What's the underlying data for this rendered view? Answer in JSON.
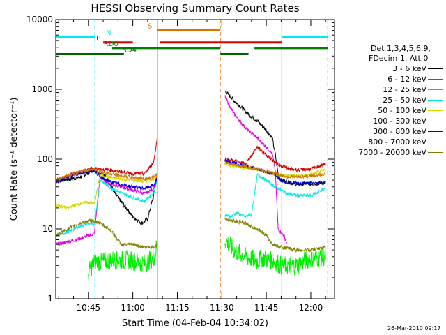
{
  "chart_data": {
    "type": "line",
    "title": "HESSI Observing Summary Count Rates",
    "xlabel": "Start Time (04-Feb-04 10:34:02)",
    "ylabel": "Count Rate (s⁻¹ detector⁻¹)",
    "yscale": "log",
    "ylim": [
      1,
      10000
    ],
    "xlim_minutes_after_1030": [
      4,
      98
    ],
    "x_ticks": [
      {
        "label": "10:45",
        "min": 15
      },
      {
        "label": "11:00",
        "min": 30
      },
      {
        "label": "11:15",
        "min": 45
      },
      {
        "label": "11:30",
        "min": 60
      },
      {
        "label": "11:45",
        "min": 75
      },
      {
        "label": "12:00",
        "min": 90
      }
    ],
    "y_ticks": [
      {
        "label": "1",
        "value": 1
      },
      {
        "label": "10",
        "value": 10
      },
      {
        "label": "100",
        "value": 100
      },
      {
        "label": "1000",
        "value": 1000
      },
      {
        "label": "10000",
        "value": 10000
      }
    ],
    "legend_title": [
      "Det 1,3,4,5,6,9,",
      "FDecim 1, Att 0"
    ],
    "legend_placement": "right",
    "segments": [
      [
        4,
        38.3
      ],
      [
        59.5,
        95.7
      ]
    ],
    "series": [
      {
        "name": "3 - 6 keV",
        "color": "#000000",
        "seg1": [
          [
            4,
            48
          ],
          [
            12,
            55
          ],
          [
            17,
            70
          ],
          [
            21,
            58
          ],
          [
            24,
            32
          ],
          [
            27,
            22
          ],
          [
            30,
            15
          ],
          [
            33,
            12
          ],
          [
            35,
            14
          ],
          [
            37,
            30
          ],
          [
            38.3,
            65
          ]
        ],
        "seg2": [
          [
            61,
            950
          ],
          [
            64,
            700
          ],
          [
            68,
            480
          ],
          [
            72,
            350
          ],
          [
            75,
            260
          ],
          [
            77,
            200
          ],
          [
            78,
            120
          ],
          [
            79,
            60
          ],
          [
            80,
            50
          ],
          [
            85,
            44
          ],
          [
            90,
            44
          ],
          [
            95,
            46
          ]
        ]
      },
      {
        "name": "6 - 12 keV",
        "color": "#e000e0",
        "seg1": [
          [
            4,
            6
          ],
          [
            11,
            7
          ],
          [
            15,
            8
          ],
          [
            17,
            8.5
          ],
          [
            19,
            55
          ],
          [
            22,
            45
          ],
          [
            26,
            40
          ],
          [
            30,
            36
          ],
          [
            34,
            32
          ],
          [
            37,
            38
          ],
          [
            38.3,
            60
          ]
        ],
        "seg2": [
          [
            61,
            800
          ],
          [
            64,
            450
          ],
          [
            68,
            280
          ],
          [
            72,
            200
          ],
          [
            75,
            150
          ],
          [
            77,
            120
          ],
          [
            78,
            70
          ],
          [
            79,
            10
          ],
          [
            81,
            8
          ],
          [
            82,
            6
          ]
        ]
      },
      {
        "name": "12 - 25 keV",
        "color": "#00ee00",
        "seg1": [
          [
            15,
            2.3
          ],
          [
            17,
            3.5
          ],
          [
            19,
            3.3
          ],
          [
            22,
            3.6
          ],
          [
            26,
            3.6
          ],
          [
            30,
            3.5
          ],
          [
            34,
            3.2
          ],
          [
            37,
            3.8
          ],
          [
            38.3,
            6
          ]
        ],
        "seg2": [
          [
            61,
            7
          ],
          [
            64,
            5
          ],
          [
            68,
            4
          ],
          [
            72,
            3.5
          ],
          [
            74,
            3.8
          ],
          [
            76,
            3.6
          ],
          [
            78,
            3.4
          ],
          [
            80,
            3
          ],
          [
            85,
            3
          ],
          [
            90,
            3.8
          ],
          [
            95,
            4
          ]
        ]
      },
      {
        "name": "25 - 50 keV",
        "color": "#00e8e8",
        "seg1": [
          [
            4,
            8
          ],
          [
            8,
            9
          ],
          [
            12,
            11
          ],
          [
            15,
            12
          ],
          [
            17,
            11.5
          ],
          [
            19,
            50
          ],
          [
            22,
            40
          ],
          [
            26,
            33
          ],
          [
            30,
            28
          ],
          [
            34,
            25
          ],
          [
            37,
            33
          ],
          [
            38.3,
            50
          ]
        ],
        "seg2": [
          [
            61,
            16
          ],
          [
            63,
            15
          ],
          [
            65,
            17
          ],
          [
            68,
            15
          ],
          [
            70,
            16
          ],
          [
            72,
            60
          ],
          [
            75,
            50
          ],
          [
            78,
            40
          ],
          [
            82,
            32
          ],
          [
            85,
            30
          ],
          [
            90,
            30
          ],
          [
            95,
            38
          ]
        ]
      },
      {
        "name": "50 - 100 keV",
        "color": "#d6d600",
        "seg1": [
          [
            4,
            22
          ],
          [
            8,
            20
          ],
          [
            12,
            23
          ],
          [
            15,
            24
          ],
          [
            17,
            23
          ],
          [
            19,
            60
          ],
          [
            22,
            55
          ],
          [
            26,
            52
          ],
          [
            30,
            50
          ],
          [
            34,
            48
          ],
          [
            37,
            52
          ],
          [
            38.3,
            60
          ]
        ],
        "seg2": [
          [
            61,
            85
          ],
          [
            64,
            80
          ],
          [
            68,
            75
          ],
          [
            72,
            70
          ],
          [
            76,
            64
          ],
          [
            79,
            60
          ],
          [
            82,
            58
          ],
          [
            86,
            57
          ],
          [
            90,
            60
          ],
          [
            95,
            70
          ]
        ]
      },
      {
        "name": "100 - 300 keV",
        "color": "#cc0000",
        "seg1": [
          [
            4,
            50
          ],
          [
            8,
            58
          ],
          [
            12,
            66
          ],
          [
            15,
            72
          ],
          [
            17,
            74
          ],
          [
            19,
            72
          ],
          [
            22,
            70
          ],
          [
            26,
            66
          ],
          [
            30,
            62
          ],
          [
            34,
            62
          ],
          [
            37,
            90
          ],
          [
            38.3,
            210
          ]
        ],
        "seg2": [
          [
            61,
            100
          ],
          [
            64,
            95
          ],
          [
            68,
            85
          ],
          [
            72,
            150
          ],
          [
            75,
            115
          ],
          [
            78,
            90
          ],
          [
            80,
            80
          ],
          [
            83,
            72
          ],
          [
            86,
            70
          ],
          [
            90,
            72
          ],
          [
            95,
            85
          ]
        ]
      },
      {
        "name": "300 - 800 keV",
        "color": "#0000dd",
        "seg1": [
          [
            4,
            46
          ],
          [
            8,
            55
          ],
          [
            12,
            62
          ],
          [
            15,
            68
          ],
          [
            17,
            70
          ],
          [
            19,
            55
          ],
          [
            22,
            48
          ],
          [
            26,
            43
          ],
          [
            30,
            40
          ],
          [
            34,
            38
          ],
          [
            37,
            42
          ],
          [
            38.3,
            55
          ]
        ],
        "seg2": [
          [
            61,
            95
          ],
          [
            64,
            88
          ],
          [
            68,
            80
          ],
          [
            72,
            72
          ],
          [
            75,
            65
          ],
          [
            78,
            60
          ],
          [
            80,
            50
          ],
          [
            83,
            46
          ],
          [
            86,
            45
          ],
          [
            90,
            45
          ],
          [
            95,
            46
          ]
        ]
      },
      {
        "name": "800 - 7000 keV",
        "color": "#cc7700",
        "seg1": [
          [
            4,
            50
          ],
          [
            8,
            57
          ],
          [
            12,
            65
          ],
          [
            15,
            70
          ],
          [
            17,
            71
          ],
          [
            19,
            66
          ],
          [
            22,
            62
          ],
          [
            26,
            58
          ],
          [
            30,
            55
          ],
          [
            34,
            52
          ],
          [
            37,
            55
          ],
          [
            38.3,
            60
          ]
        ],
        "seg2": [
          [
            61,
            90
          ],
          [
            64,
            84
          ],
          [
            68,
            78
          ],
          [
            72,
            72
          ],
          [
            76,
            66
          ],
          [
            79,
            60
          ],
          [
            82,
            56
          ],
          [
            86,
            55
          ],
          [
            90,
            57
          ],
          [
            95,
            62
          ]
        ]
      },
      {
        "name": "7000 - 20000 keV",
        "color": "#808000",
        "seg1": [
          [
            4,
            8
          ],
          [
            8,
            10
          ],
          [
            12,
            12
          ],
          [
            15,
            13
          ],
          [
            17,
            13
          ],
          [
            19,
            12
          ],
          [
            22,
            10
          ],
          [
            24,
            8
          ],
          [
            26,
            6
          ],
          [
            30,
            6
          ],
          [
            34,
            5.5
          ],
          [
            37,
            5.5
          ],
          [
            38.3,
            6
          ]
        ],
        "seg2": [
          [
            61,
            14
          ],
          [
            64,
            13
          ],
          [
            68,
            12
          ],
          [
            72,
            10
          ],
          [
            75,
            8
          ],
          [
            77,
            6
          ],
          [
            80,
            5.5
          ],
          [
            85,
            5
          ],
          [
            90,
            5
          ],
          [
            95,
            5.5
          ]
        ]
      }
    ],
    "vertical_markers": [
      {
        "min": 4,
        "color": "#00e8e8",
        "style": "solid"
      },
      {
        "min": 17.2,
        "color": "#00e8e8",
        "style": "dashed"
      },
      {
        "min": 38.3,
        "color": "#e07000",
        "style": "solid"
      },
      {
        "min": 59.5,
        "color": "#e07000",
        "style": "dashed"
      },
      {
        "min": 80.2,
        "color": "#00e8e8",
        "style": "solid"
      },
      {
        "min": 95.7,
        "color": "#00e8e8",
        "style": "dashed"
      }
    ],
    "flag_bars": [
      {
        "label": "N",
        "color": "#00e8e8",
        "level": 5600,
        "spans": [
          [
            4,
            17.2
          ],
          [
            80.2,
            95.7
          ]
        ]
      },
      {
        "label": "S",
        "color": "#e07000",
        "level": 7000,
        "spans": [
          [
            38.3,
            59.5
          ]
        ]
      },
      {
        "label": "F",
        "color": "#dd0000",
        "level": 4700,
        "spans": [
          [
            20,
            30
          ],
          [
            39,
            80.2
          ]
        ]
      },
      {
        "label": "RD0",
        "color": "#008000",
        "level": 3900,
        "spans": [
          [
            23,
            59.5
          ],
          [
            71,
            95.7
          ]
        ]
      },
      {
        "label": "RD4",
        "color": "#006400",
        "level": 3200,
        "spans": [
          [
            4,
            27
          ],
          [
            59.5,
            69
          ]
        ]
      }
    ]
  },
  "footer_timestamp": "26-Mar-2010 09:17"
}
